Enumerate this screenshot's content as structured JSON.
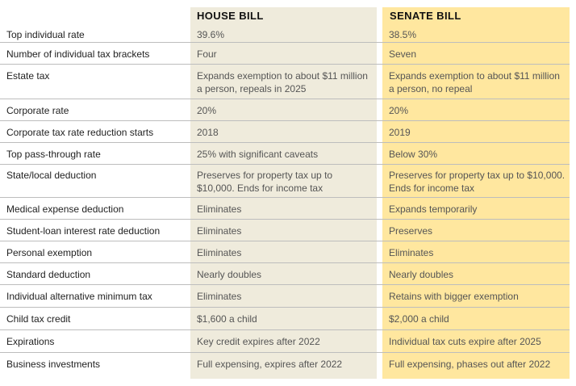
{
  "headers": {
    "house": "HOUSE BILL",
    "senate": "SENATE BILL"
  },
  "colors": {
    "house_bg": "#efebdc",
    "senate_bg": "#ffe79f",
    "rule": "#bdbdbd"
  },
  "rows": [
    {
      "label": "Top individual rate",
      "house": "39.6%",
      "senate": "38.5%"
    },
    {
      "label": "Number of individual tax brackets",
      "house": "Four",
      "senate": "Seven"
    },
    {
      "label": "Estate tax",
      "house": "Expands exemption to about $11 million a person, repeals in 2025",
      "senate": "Expands exemption to about $11 million a person, no repeal"
    },
    {
      "label": "Corporate rate",
      "house": "20%",
      "senate": "20%"
    },
    {
      "label": "Corporate tax rate reduction starts",
      "house": "2018",
      "senate": "2019"
    },
    {
      "label": "Top pass-through rate",
      "house": "25% with significant caveats",
      "senate": "Below 30%"
    },
    {
      "label": "State/local deduction",
      "house": "Preserves for property tax up to $10,000. Ends for income tax",
      "senate": "Preserves for property tax up to $10,000. Ends for income tax"
    },
    {
      "label": "Medical expense deduction",
      "house": "Eliminates",
      "senate": "Expands temporarily"
    },
    {
      "label": "Student-loan interest rate deduction",
      "house": "Eliminates",
      "senate": "Preserves"
    },
    {
      "label": "Personal exemption",
      "house": "Eliminates",
      "senate": "Eliminates"
    },
    {
      "label": "Standard deduction",
      "house": "Nearly doubles",
      "senate": "Nearly doubles"
    },
    {
      "label": "Individual alternative minimum tax",
      "house": "Eliminates",
      "senate": "Retains with bigger exemption"
    },
    {
      "label": "Child tax credit",
      "house": "$1,600 a child",
      "senate": "$2,000 a child"
    },
    {
      "label": "Expirations",
      "house": "Key credit expires after 2022",
      "senate": "Individual tax cuts expire after 2025"
    },
    {
      "label": "Business investments",
      "house": "Full expensing, expires after 2022",
      "senate": "Full expensing, phases out after 2022"
    }
  ]
}
